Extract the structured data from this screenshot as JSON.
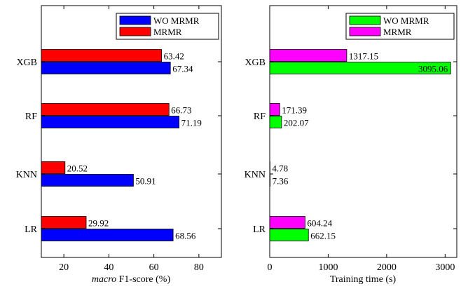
{
  "chart_data": [
    {
      "type": "bar",
      "orientation": "horizontal",
      "categories": [
        "XGB",
        "RF",
        "KNN",
        "LR"
      ],
      "series": [
        {
          "name": "WO MRMR",
          "color": "#0000ff",
          "values": [
            67.34,
            71.19,
            50.91,
            68.56
          ],
          "labels": [
            "67.34",
            "71.19",
            "50.91",
            "68.56"
          ]
        },
        {
          "name": "MRMR",
          "color": "#ff0000",
          "values": [
            63.42,
            66.73,
            20.52,
            29.92
          ],
          "labels": [
            "63.42",
            "66.73",
            "20.52",
            "29.92"
          ]
        }
      ],
      "xlabel_prefix": "macro",
      "xlabel_rest": " F1-score (%)",
      "xlim": [
        10,
        90
      ],
      "xticks": [
        "20",
        "40",
        "60",
        "80"
      ],
      "xtick_values": [
        20,
        40,
        60,
        80
      ],
      "legend_position": "top-right",
      "grid": false
    },
    {
      "type": "bar",
      "orientation": "horizontal",
      "categories": [
        "XGB",
        "RF",
        "KNN",
        "LR"
      ],
      "series": [
        {
          "name": "WO MRMR",
          "color": "#00ff00",
          "values": [
            3095.06,
            202.07,
            7.36,
            662.15
          ],
          "labels": [
            "3095.06",
            "202.07",
            "7.36",
            "662.15"
          ]
        },
        {
          "name": "MRMR",
          "color": "#ff00ff",
          "values": [
            1317.15,
            171.39,
            4.78,
            604.24
          ],
          "labels": [
            "1317.15",
            "171.39",
            "4.78",
            "604.24"
          ]
        }
      ],
      "xlabel_prefix": "",
      "xlabel_rest": "Training time (s)",
      "xlim": [
        0,
        3200
      ],
      "xticks": [
        "0",
        "1000",
        "2000",
        "3000"
      ],
      "xtick_values": [
        0,
        1000,
        2000,
        3000
      ],
      "legend_position": "top-right",
      "grid": false
    }
  ]
}
